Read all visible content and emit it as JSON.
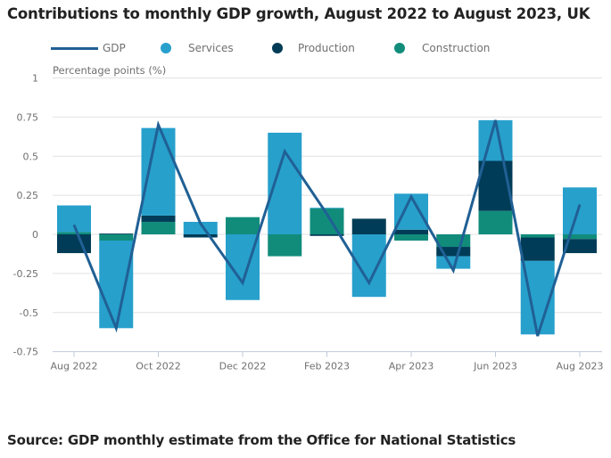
{
  "title": "Contributions to monthly GDP growth, August 2022 to August 2023, UK",
  "source": "Source: GDP monthly estimate from the Office for National Statistics",
  "legend": [
    {
      "name": "GDP",
      "kind": "line",
      "color": "#206095"
    },
    {
      "name": "Services",
      "kind": "dot",
      "color": "#27a0cc"
    },
    {
      "name": "Production",
      "kind": "dot",
      "color": "#003c57"
    },
    {
      "name": "Construction",
      "kind": "dot",
      "color": "#118c7b"
    }
  ],
  "chart_data": {
    "type": "bar",
    "stacked": true,
    "title": "Contributions to monthly GDP growth, August 2022 to August 2023, UK",
    "ylabel": "Percentage points (%)",
    "xlabel": "",
    "ylim": [
      -0.75,
      1
    ],
    "yticks": [
      "1",
      "0.75",
      "0.5",
      "0.25",
      "0",
      "-0.25",
      "-0.5",
      "-0.75"
    ],
    "ytick_values": [
      1,
      0.75,
      0.5,
      0.25,
      0,
      -0.25,
      -0.5,
      -0.75
    ],
    "grid": true,
    "legend_position": "top",
    "categories": [
      "Aug 2022",
      "Sep 2022",
      "Oct 2022",
      "Nov 2022",
      "Dec 2022",
      "Jan 2023",
      "Feb 2023",
      "Mar 2023",
      "Apr 2023",
      "May 2023",
      "Jun 2023",
      "Jul 2023",
      "Aug 2023"
    ],
    "xtick_labels": [
      "Aug 2022",
      "",
      "Oct 2022",
      "",
      "Dec 2022",
      "",
      "Feb 2023",
      "",
      "Apr 2023",
      "",
      "Jun 2023",
      "",
      "Aug 2023"
    ],
    "series": [
      {
        "name": "Services",
        "type": "bar",
        "color": "#27a0cc",
        "values": [
          0.17,
          -0.56,
          0.56,
          0.08,
          -0.42,
          0.65,
          0.005,
          -0.4,
          0.23,
          -0.08,
          0.26,
          -0.47,
          0.3
        ]
      },
      {
        "name": "Production",
        "type": "bar",
        "color": "#003c57",
        "values": [
          -0.12,
          0.005,
          0.04,
          -0.02,
          0.0,
          0.0,
          -0.01,
          0.1,
          0.03,
          -0.06,
          0.32,
          -0.15,
          -0.09
        ]
      },
      {
        "name": "Construction",
        "type": "bar",
        "color": "#118c7b",
        "values": [
          0.015,
          -0.04,
          0.08,
          0.0,
          0.11,
          -0.14,
          0.165,
          0.0,
          -0.04,
          -0.08,
          0.15,
          -0.02,
          -0.03
        ]
      },
      {
        "name": "GDP",
        "type": "line",
        "color": "#206095",
        "values": [
          0.06,
          -0.6,
          0.7,
          0.07,
          -0.31,
          0.53,
          0.13,
          -0.31,
          0.24,
          -0.23,
          0.73,
          -0.65,
          0.19
        ]
      }
    ]
  }
}
